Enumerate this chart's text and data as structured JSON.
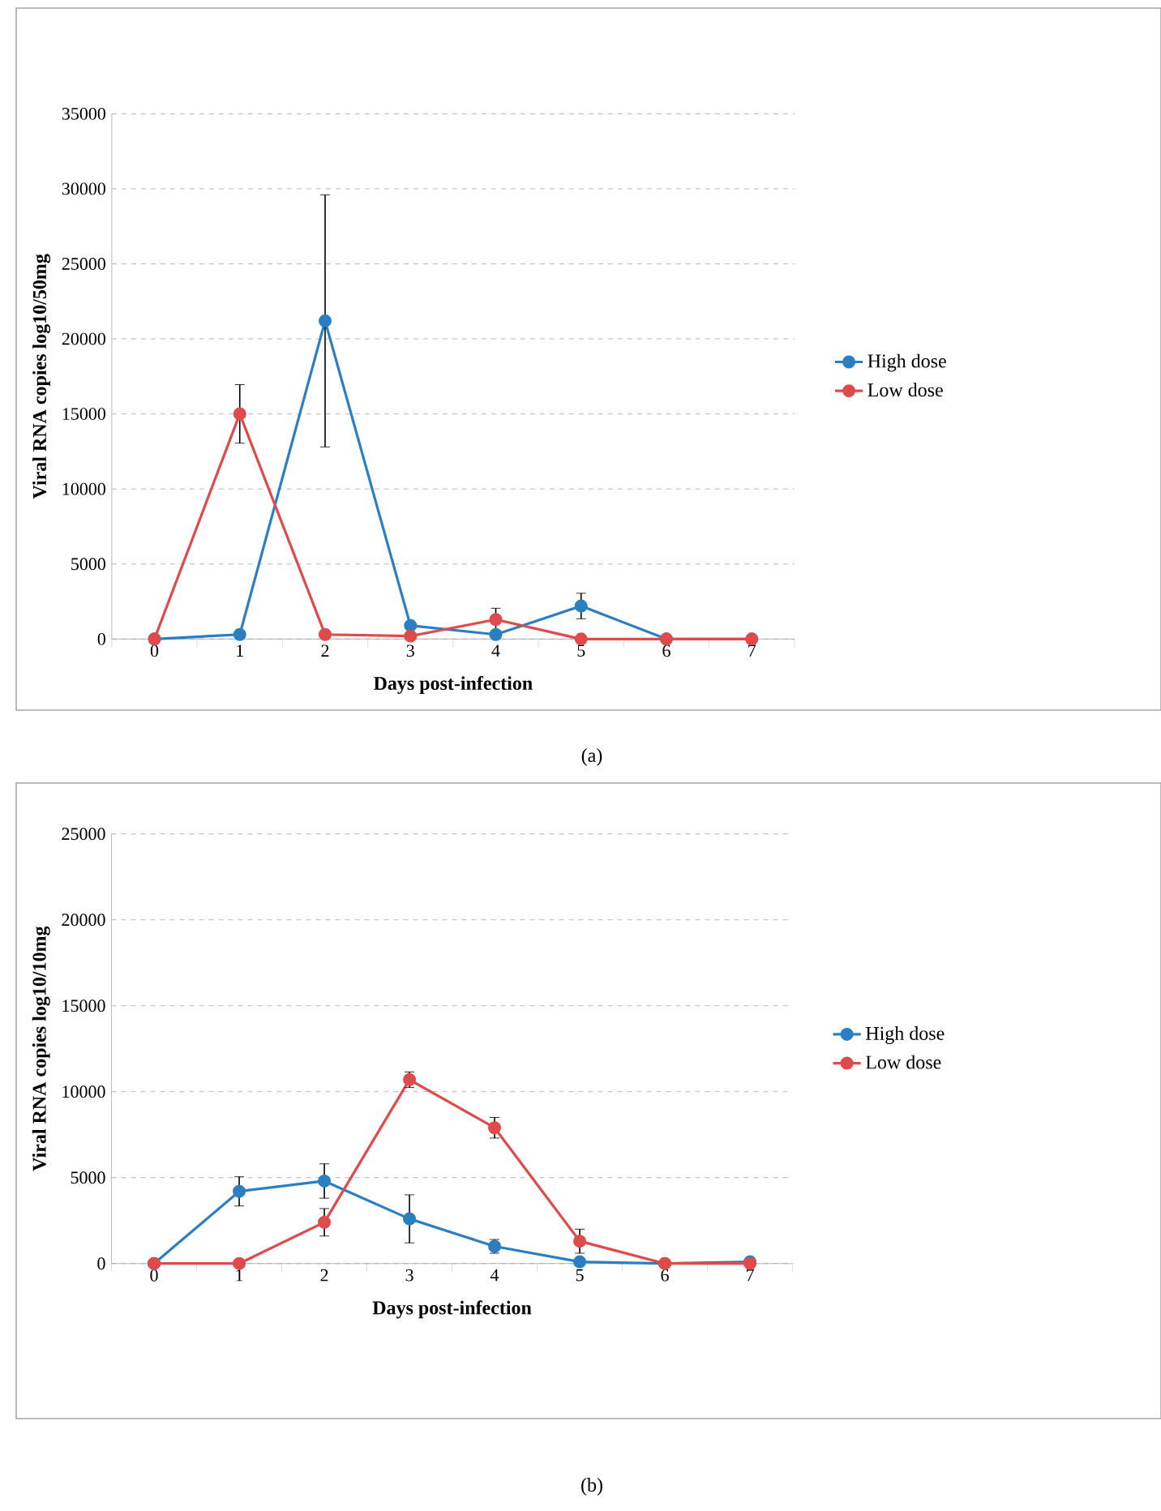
{
  "chart_data": [
    {
      "type": "line",
      "xlabel": "Days post-infection",
      "ylabel": "Viral RNA copies log10/50mg",
      "categories": [
        "0",
        "1",
        "2",
        "3",
        "4",
        "5",
        "6",
        "7"
      ],
      "series": [
        {
          "name": "High dose",
          "color": "#2a7fc2",
          "values": [
            0,
            300,
            21200,
            900,
            300,
            2200,
            0,
            0
          ],
          "errors": [
            null,
            null,
            8400,
            null,
            null,
            850,
            null,
            null
          ]
        },
        {
          "name": "Low dose",
          "color": "#e04a4a",
          "values": [
            0,
            15000,
            300,
            200,
            1300,
            0,
            0,
            0
          ],
          "errors": [
            null,
            1950,
            null,
            null,
            750,
            null,
            null,
            null
          ]
        }
      ],
      "ylim": [
        0,
        35000
      ],
      "yticks": [
        0,
        5000,
        10000,
        15000,
        20000,
        25000,
        30000,
        35000
      ],
      "grid": "y",
      "legend": "right",
      "marker": "circle",
      "annotations": [
        "(a)"
      ]
    },
    {
      "type": "line",
      "xlabel": "Days post-infection",
      "ylabel": "Viral RNA copies log10/10mg",
      "categories": [
        "0",
        "1",
        "2",
        "3",
        "4",
        "5",
        "6",
        "7"
      ],
      "series": [
        {
          "name": "High dose",
          "color": "#2a7fc2",
          "values": [
            0,
            4200,
            4800,
            2600,
            1000,
            100,
            0,
            100
          ],
          "errors": [
            null,
            850,
            1000,
            1400,
            400,
            null,
            null,
            null
          ]
        },
        {
          "name": "Low dose",
          "color": "#e04a4a",
          "values": [
            0,
            0,
            2400,
            10700,
            7900,
            1300,
            0,
            0
          ],
          "errors": [
            null,
            null,
            800,
            450,
            600,
            700,
            null,
            null
          ]
        }
      ],
      "ylim": [
        0,
        25000
      ],
      "yticks": [
        0,
        5000,
        10000,
        15000,
        20000,
        25000
      ],
      "grid": "y",
      "legend": "right",
      "marker": "circle",
      "annotations": [
        "(b)"
      ]
    }
  ]
}
